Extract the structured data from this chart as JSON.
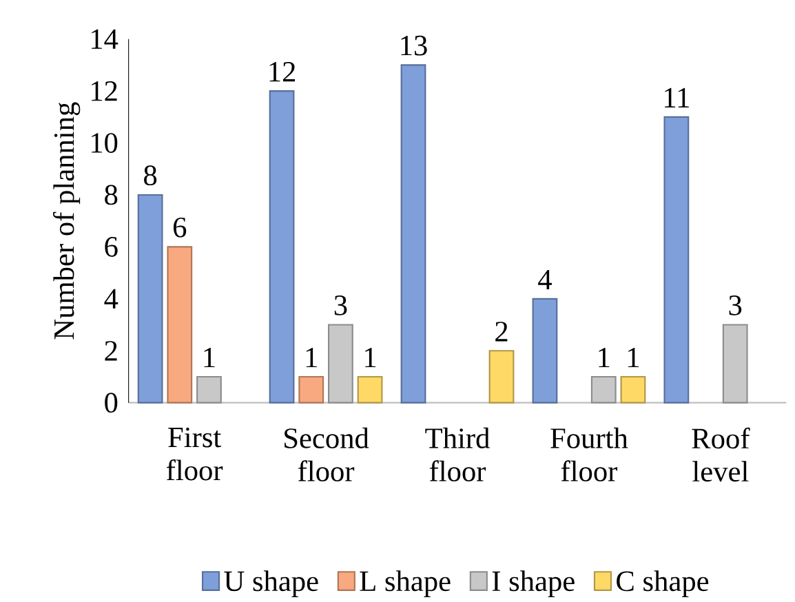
{
  "chart_data": {
    "type": "bar",
    "ylabel": "Number of planning",
    "categories": [
      "First floor",
      "Second floor",
      "Third floor",
      "Fourth floor",
      "Roof level"
    ],
    "series": [
      {
        "name": "U shape",
        "color": "#7f9fdb",
        "values": [
          8,
          12,
          13,
          4,
          11
        ],
        "value_labels": [
          "8",
          "12",
          "13",
          "4",
          "11"
        ]
      },
      {
        "name": "L shape",
        "color": "#f9a97f",
        "values": [
          6,
          1,
          null,
          null,
          null
        ],
        "value_labels": [
          "6",
          "1",
          null,
          null,
          null
        ]
      },
      {
        "name": "I shape",
        "color": "#c8c8c8",
        "values": [
          1,
          3,
          null,
          1,
          3
        ],
        "value_labels": [
          "1",
          "3",
          null,
          "1",
          "3"
        ]
      },
      {
        "name": "C shape",
        "color": "#ffd966",
        "values": [
          null,
          1,
          2,
          1,
          null
        ],
        "value_labels": [
          null,
          "1",
          "2",
          "1",
          null
        ]
      }
    ],
    "ylim": [
      0,
      14
    ],
    "yticks": [
      0,
      2,
      4,
      6,
      8,
      10,
      12,
      14
    ],
    "grid": false,
    "legend": "bottom"
  }
}
